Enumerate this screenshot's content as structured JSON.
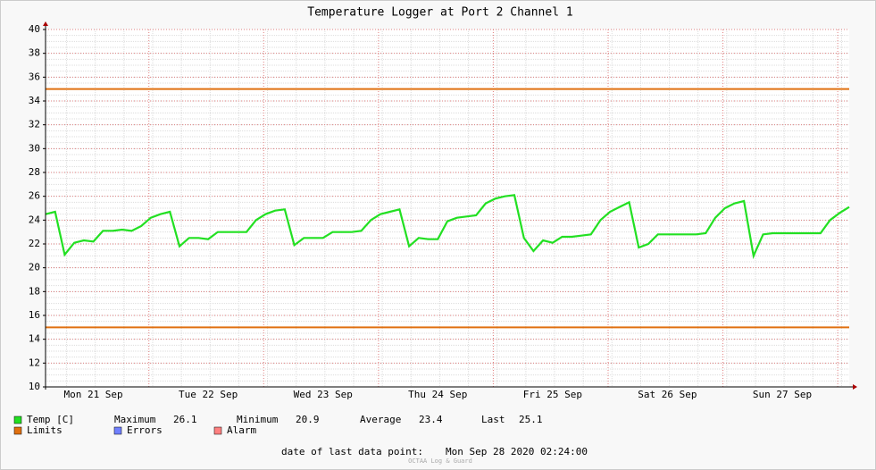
{
  "chart_data": {
    "type": "line",
    "title": "Temperature Logger at Port 2 Channel 1",
    "categories": [
      null,
      null,
      null,
      null,
      null,
      "Mon 21 Sep",
      null,
      null,
      null,
      null,
      null,
      null,
      null,
      null,
      null,
      null,
      null,
      "Tue 22 Sep",
      null,
      null,
      null,
      null,
      null,
      null,
      null,
      null,
      null,
      null,
      null,
      "Wed 23 Sep",
      null,
      null,
      null,
      null,
      null,
      null,
      null,
      null,
      null,
      null,
      null,
      "Thu 24 Sep",
      null,
      null,
      null,
      null,
      null,
      null,
      null,
      null,
      null,
      null,
      null,
      "Fri 25 Sep",
      null,
      null,
      null,
      null,
      null,
      null,
      null,
      null,
      null,
      null,
      null,
      "Sat 26 Sep",
      null,
      null,
      null,
      null,
      null,
      null,
      null,
      null,
      null,
      null,
      null,
      "Sun 27 Sep",
      null,
      null,
      null,
      null,
      null,
      null,
      null
    ],
    "series": [
      {
        "name": "Temp [C]",
        "color": "#22e022",
        "values": [
          24.5,
          24.7,
          21.1,
          22.1,
          22.3,
          22.2,
          23.1,
          23.1,
          23.2,
          23.1,
          23.5,
          24.2,
          24.5,
          24.7,
          21.8,
          22.5,
          22.5,
          22.4,
          23.0,
          23.0,
          23.0,
          23.0,
          24.0,
          24.5,
          24.8,
          24.9,
          21.9,
          22.5,
          22.5,
          22.5,
          23.0,
          23.0,
          23.0,
          23.1,
          24.0,
          24.5,
          24.7,
          24.9,
          21.8,
          22.5,
          22.4,
          22.4,
          23.9,
          24.2,
          24.3,
          24.4,
          25.4,
          25.8,
          26.0,
          26.1,
          22.5,
          21.4,
          22.3,
          22.1,
          22.6,
          22.6,
          22.7,
          22.8,
          24.0,
          24.7,
          25.1,
          25.5,
          21.7,
          22.0,
          22.8,
          22.8,
          22.8,
          22.8,
          22.8,
          22.9,
          24.2,
          25.0,
          25.4,
          25.6,
          21.0,
          22.8,
          22.9,
          22.9,
          22.9,
          22.9,
          22.9,
          22.9,
          24.0,
          24.6,
          25.1
        ]
      }
    ],
    "limits": {
      "name": "Limits",
      "color": "#e07010",
      "values": [
        35,
        15
      ]
    },
    "legend_extra": [
      {
        "name": "Errors",
        "color": "#7080ff"
      },
      {
        "name": "Alarm",
        "color": "#ff8080"
      }
    ],
    "stats": [
      {
        "label": "Maximum",
        "value": 26.1
      },
      {
        "label": "Minimum",
        "value": 20.9
      },
      {
        "label": "Average",
        "value": 23.4
      },
      {
        "label": "Last",
        "value": 25.1
      }
    ],
    "ylim": [
      10,
      40
    ],
    "yticks": [
      10,
      12,
      14,
      16,
      18,
      20,
      22,
      24,
      26,
      28,
      30,
      32,
      34,
      36,
      38,
      40
    ],
    "grid": true,
    "footer": {
      "label": "date of last data point:",
      "value": "Mon Sep 28 2020 02:24:00"
    },
    "watermark": "OCTAA Log & Guard"
  }
}
